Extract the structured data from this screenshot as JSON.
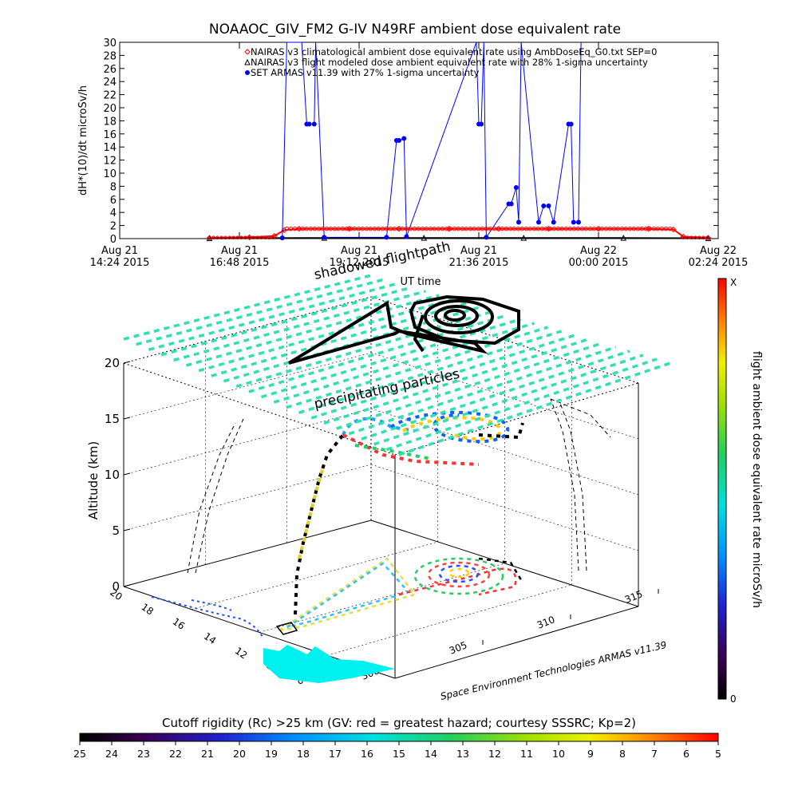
{
  "chart_data": [
    {
      "type": "line",
      "title": "NOAAOC_GIV_FM2 G-IV   N49RF  ambient dose equivalent rate",
      "ylabel": "dH*(10)/dt microSv/h",
      "xlabel": "UT time",
      "ylim": [
        0,
        30
      ],
      "y_ticks": [
        0,
        2,
        4,
        6,
        8,
        10,
        12,
        14,
        16,
        18,
        20,
        22,
        24,
        26,
        28,
        30
      ],
      "x_ticks": [
        {
          "line1": "Aug 21",
          "line2": "14:24 2015"
        },
        {
          "line1": "Aug 21",
          "line2": "16:48 2015"
        },
        {
          "line1": "Aug 21",
          "line2": "19:12 2015"
        },
        {
          "line1": "Aug 21",
          "line2": "21:36 2015"
        },
        {
          "line1": "Aug 22",
          "line2": "00:00 2015"
        },
        {
          "line1": "Aug 22",
          "line2": "02:24 2015"
        }
      ],
      "legend_position": "top-right",
      "series": [
        {
          "name": "NAIRAS v3 climatological ambient dose equivalent rate using AmbDoseEq_G0.txt SEP=0",
          "marker": "diamond",
          "color": "#ff0000",
          "x": [
            16.2,
            17.0,
            17.5,
            17.7,
            18.0,
            19.0,
            20.0,
            21.0,
            22.0,
            23.0,
            24.0,
            25.0,
            25.5,
            25.7,
            26.2
          ],
          "values": [
            0.1,
            0.2,
            0.4,
            1.3,
            1.5,
            1.5,
            1.5,
            1.5,
            1.5,
            1.5,
            1.5,
            1.5,
            1.4,
            0.3,
            0.1
          ]
        },
        {
          "name": "NAIRAS v3 flight modeled dose ambient equivalent rate with 28% 1-sigma uncertainty",
          "marker": "triangle",
          "color": "#000000",
          "x": [
            16.2,
            18.5,
            20.5,
            22.5,
            24.5,
            26.2
          ],
          "values": [
            0.05,
            0.1,
            0.1,
            0.1,
            0.1,
            0.05
          ]
        },
        {
          "name": "SET ARMAS v11.39 with 27% 1-sigma uncertainty",
          "marker": "dot",
          "color": "#0000ff",
          "x": [
            17.66,
            17.75,
            18.05,
            18.15,
            18.2,
            18.3,
            18.33,
            18.5,
            19.75,
            19.95,
            20.0,
            20.1,
            20.15,
            21.55,
            21.6,
            21.65,
            21.7,
            21.75,
            22.2,
            22.25,
            22.35,
            22.4,
            22.45,
            22.8,
            22.9,
            23.0,
            23.1,
            23.4,
            23.45,
            23.5,
            23.6,
            23.65
          ],
          "values": [
            0.1,
            30,
            30,
            17.5,
            17.5,
            17.5,
            30,
            0.2,
            0.2,
            15.0,
            15.0,
            15.3,
            0.3,
            30,
            17.5,
            17.5,
            30,
            0.2,
            5.3,
            5.3,
            7.8,
            2.5,
            30,
            2.5,
            5.0,
            5.0,
            2.5,
            17.5,
            17.5,
            2.5,
            2.5,
            30
          ]
        }
      ]
    },
    {
      "type": "scatter",
      "title": "",
      "zlabel": "Altitude (km)",
      "z_ticks": [
        0,
        5,
        10,
        15,
        20
      ],
      "y_ticks": [
        8,
        10,
        12,
        14,
        16,
        18,
        20
      ],
      "x_ticks": [
        300,
        305,
        310,
        315
      ],
      "annotations": [
        "shadowed flightpath",
        "precipitating particles"
      ],
      "credit": "Space Environment Technologies ARMAS v11.39",
      "colorbar": {
        "label": "flight ambient dose equivalent rate microSv/h",
        "top_label": "X",
        "bottom_label": "0"
      }
    },
    {
      "type": "heatmap",
      "title": "Cutoff rigidity (Rc) >25 km (GV: red = greatest hazard; courtesy SSSRC; Kp=2)",
      "tick_labels": [
        "25",
        "24",
        "23",
        "22",
        "21",
        "20",
        "19",
        "18",
        "17",
        "16",
        "15",
        "14",
        "13",
        "12",
        "11",
        "10",
        "9",
        "8",
        "7",
        "6",
        "5"
      ]
    }
  ],
  "colors": {
    "rainbow": [
      "#000000",
      "#3a0050",
      "#5a00a0",
      "#2020d0",
      "#0070ff",
      "#00c0ff",
      "#00e8e0",
      "#30e0a0",
      "#40d040",
      "#a0e000",
      "#f0f000",
      "#ffb000",
      "#ff6000",
      "#ff0000"
    ],
    "plane": "#2fe0b0",
    "shadow_path": "#000000",
    "cyan_region": "#00f0f0"
  }
}
